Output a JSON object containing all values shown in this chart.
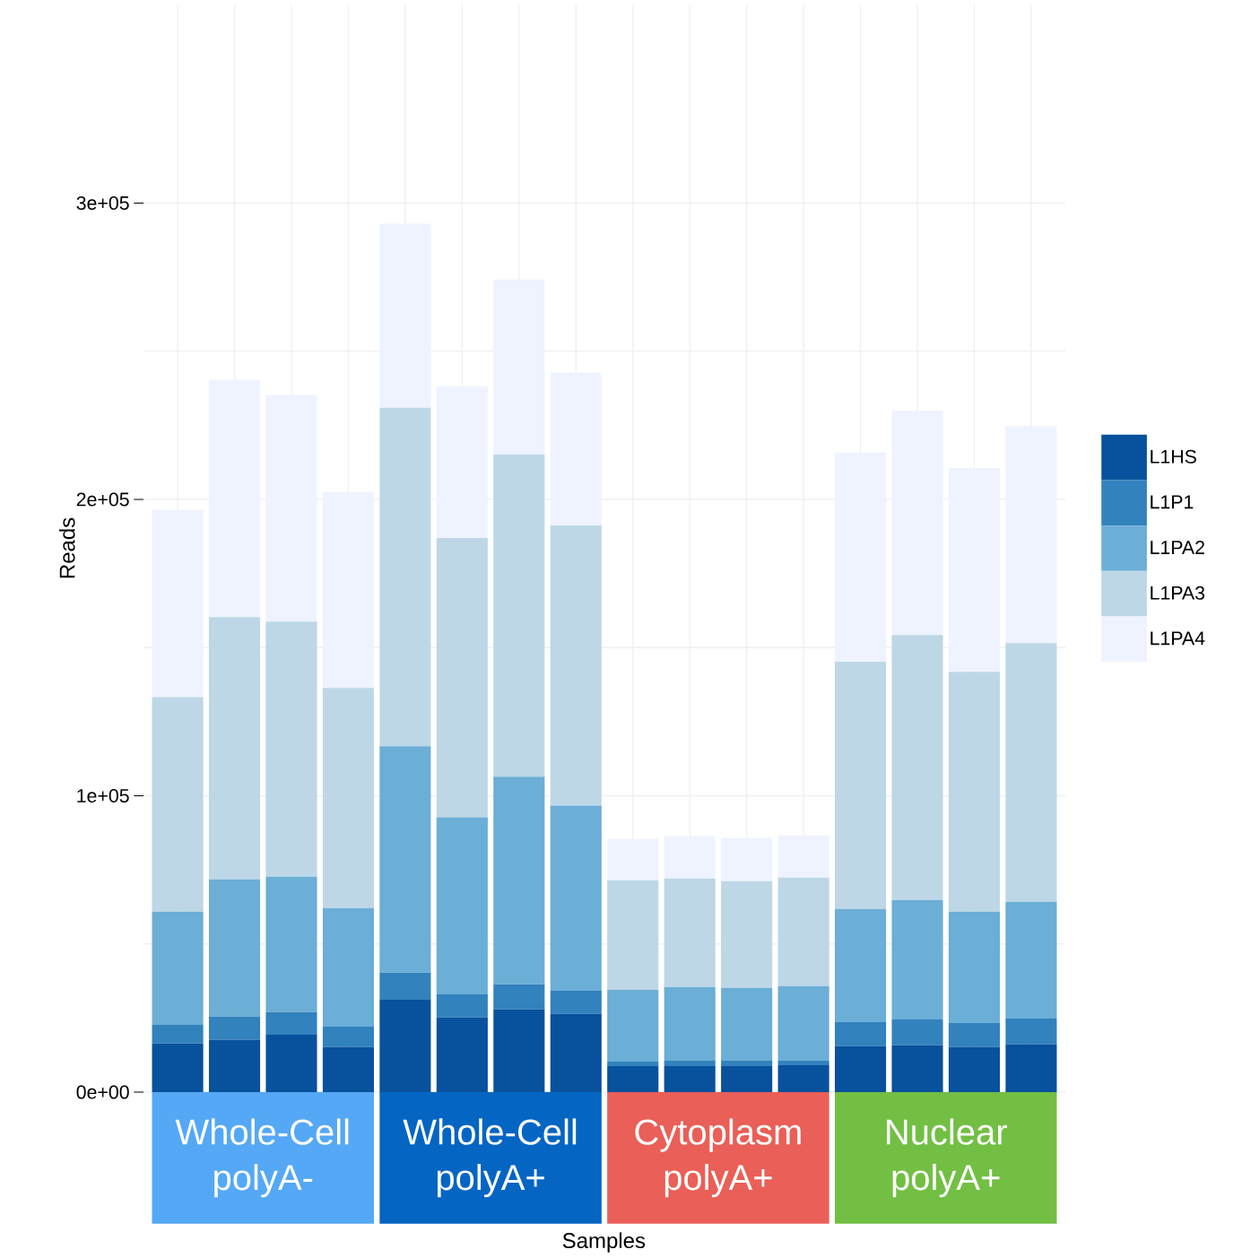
{
  "chart_data": {
    "type": "bar",
    "stacked": true,
    "ylabel": "Reads",
    "categories": [
      null,
      null,
      null,
      null,
      null,
      null,
      null,
      null,
      null,
      null,
      null,
      null,
      null,
      null,
      null,
      null
    ],
    "series": [
      {
        "name": "L1HS",
        "color": "#08519c",
        "values": [
          16400,
          17600,
          19400,
          15200,
          31200,
          25200,
          27900,
          26400,
          8800,
          8800,
          8800,
          9100,
          15500,
          15800,
          15200,
          16100
        ]
      },
      {
        "name": "L1P1",
        "color": "#3182bd",
        "values": [
          6300,
          7900,
          7600,
          6900,
          9100,
          7800,
          8500,
          7800,
          1500,
          1800,
          1800,
          1500,
          8100,
          8700,
          8100,
          8700
        ]
      },
      {
        "name": "L1PA2",
        "color": "#6baed6",
        "values": [
          38200,
          46300,
          45700,
          40000,
          76400,
          59700,
          70000,
          62500,
          24200,
          24900,
          24600,
          25200,
          38200,
          40300,
          37600,
          39400
        ]
      },
      {
        "name": "L1PA3",
        "color": "#bdd7e7",
        "values": [
          72400,
          88500,
          86100,
          74300,
          114200,
          94300,
          108800,
          94500,
          37000,
          36600,
          36000,
          36600,
          83400,
          89400,
          80900,
          87300
        ]
      },
      {
        "name": "L1PA4",
        "color": "#eff3ff",
        "values": [
          63100,
          80000,
          76400,
          66000,
          62100,
          51200,
          59000,
          51500,
          14000,
          14300,
          14600,
          14300,
          70600,
          75800,
          68800,
          73300
        ]
      }
    ],
    "ylim": [
      0,
      367000
    ],
    "yticks": [
      {
        "value": 0,
        "label": "0e+00"
      },
      {
        "value": 100000,
        "label": "1e+05"
      },
      {
        "value": 200000,
        "label": "2e+05"
      },
      {
        "value": 300000,
        "label": "3e+05"
      }
    ],
    "grid": true,
    "legend": "right",
    "annotations": [
      "Whole-Cell polyA-",
      "Whole-Cell polyA+",
      "Cytoplasm polyA+",
      "Nuclear polyA+",
      "Samples"
    ]
  }
}
